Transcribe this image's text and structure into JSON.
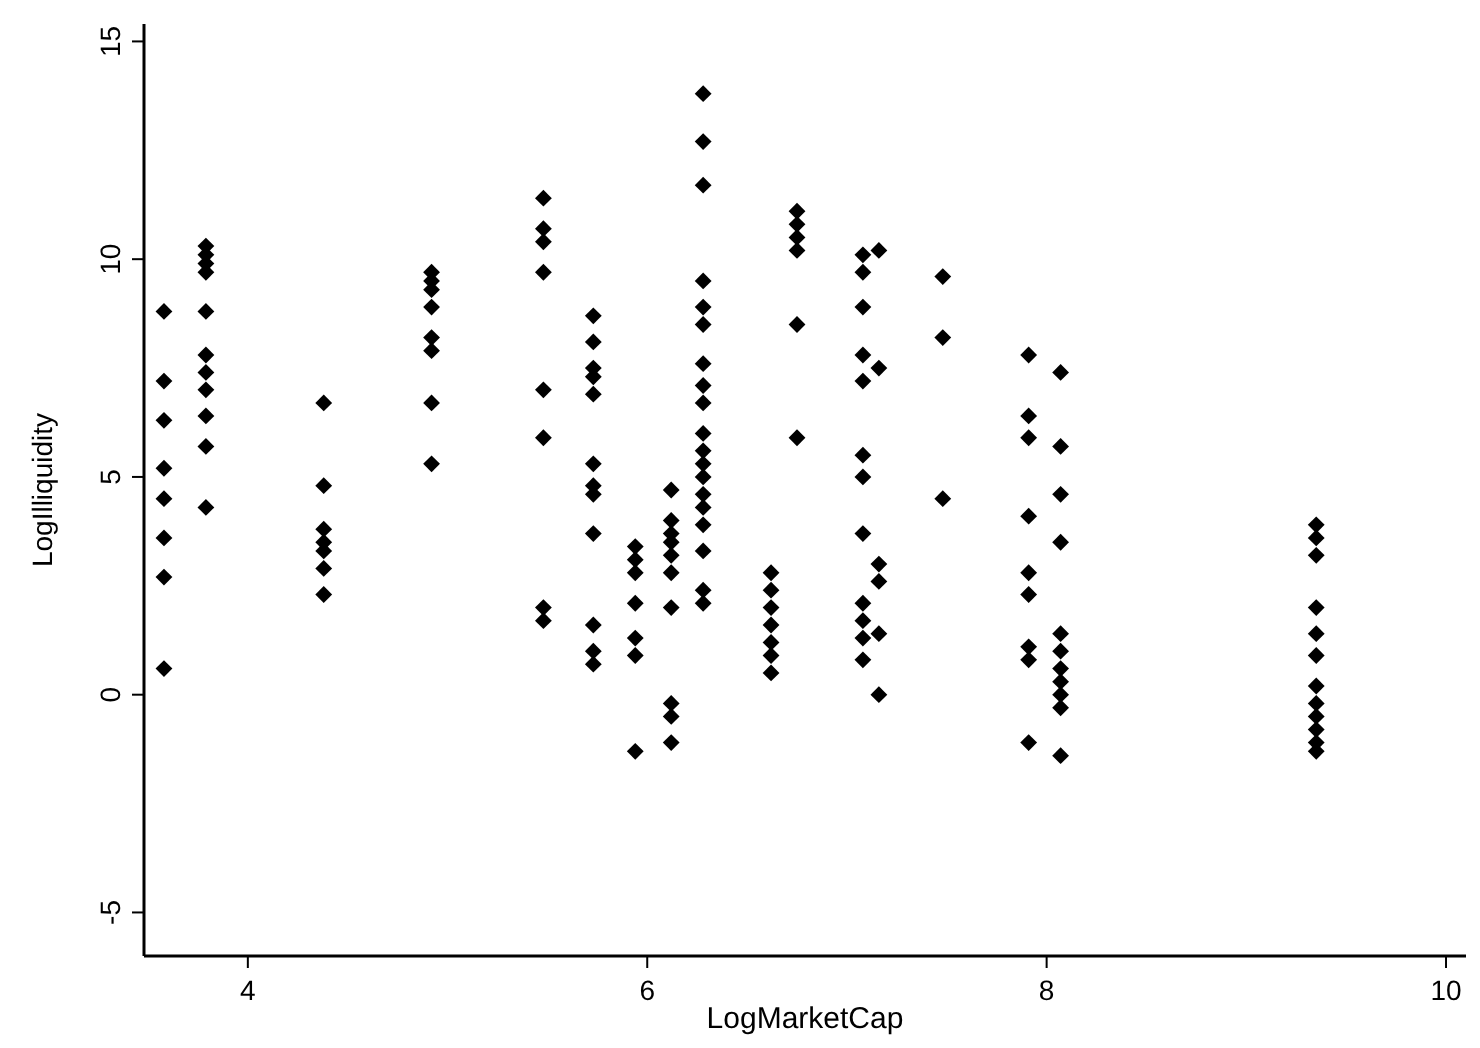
{
  "chart_data": {
    "type": "scatter",
    "xlabel": "LogMarketCap",
    "ylabel": "LogIlliquidity",
    "marker": "diamond",
    "grid": false,
    "xlim": [
      3.48,
      10.1
    ],
    "ylim": [
      -6,
      15.4
    ],
    "xticks": [
      4,
      6,
      8,
      10
    ],
    "yticks": [
      -5,
      0,
      5,
      10,
      15
    ],
    "series": [
      {
        "color": "#000000",
        "x": [
          3.58,
          3.58,
          3.58,
          3.58,
          3.58,
          3.58,
          3.58,
          3.58,
          3.79,
          3.79,
          3.79,
          3.79,
          3.79,
          3.79,
          3.79,
          3.79,
          3.79,
          3.79,
          3.79,
          4.38,
          4.38,
          4.38,
          4.38,
          4.38,
          4.38,
          4.38,
          4.92,
          4.92,
          4.92,
          4.92,
          4.92,
          4.92,
          4.92,
          4.92,
          5.48,
          5.48,
          5.48,
          5.48,
          5.48,
          5.48,
          5.48,
          5.48,
          5.73,
          5.73,
          5.73,
          5.73,
          5.73,
          5.73,
          5.73,
          5.73,
          5.73,
          5.73,
          5.73,
          5.73,
          5.94,
          5.94,
          5.94,
          5.94,
          5.94,
          5.94,
          5.94,
          6.12,
          6.12,
          6.12,
          6.12,
          6.12,
          6.12,
          6.12,
          6.12,
          6.12,
          6.12,
          6.28,
          6.28,
          6.28,
          6.28,
          6.28,
          6.28,
          6.28,
          6.28,
          6.28,
          6.28,
          6.28,
          6.28,
          6.28,
          6.28,
          6.28,
          6.28,
          6.28,
          6.28,
          6.28,
          6.62,
          6.62,
          6.62,
          6.62,
          6.62,
          6.62,
          6.62,
          6.75,
          6.75,
          6.75,
          6.75,
          6.75,
          6.75,
          7.08,
          7.08,
          7.08,
          7.08,
          7.08,
          7.08,
          7.08,
          7.08,
          7.08,
          7.08,
          7.08,
          7.08,
          7.16,
          7.16,
          7.16,
          7.16,
          7.16,
          7.16,
          7.48,
          7.48,
          7.48,
          7.91,
          7.91,
          7.91,
          7.91,
          7.91,
          7.91,
          7.91,
          7.91,
          7.91,
          8.07,
          8.07,
          8.07,
          8.07,
          8.07,
          8.07,
          8.07,
          8.07,
          8.07,
          8.07,
          8.07,
          9.35,
          9.35,
          9.35,
          9.35,
          9.35,
          9.35,
          9.35,
          9.35,
          9.35,
          9.35,
          9.35,
          9.35
        ],
        "values": [
          8.8,
          7.2,
          6.3,
          5.2,
          4.5,
          3.6,
          2.7,
          0.6,
          10.3,
          10.1,
          9.9,
          9.7,
          8.8,
          7.8,
          7.4,
          7.0,
          6.4,
          5.7,
          4.3,
          6.7,
          4.8,
          3.8,
          3.5,
          3.3,
          2.9,
          2.3,
          9.7,
          9.5,
          9.3,
          8.9,
          8.2,
          7.9,
          6.7,
          5.3,
          11.4,
          10.7,
          10.4,
          9.7,
          7.0,
          5.9,
          2.0,
          1.7,
          8.7,
          8.1,
          7.5,
          7.3,
          6.9,
          5.3,
          4.8,
          4.6,
          3.7,
          1.6,
          1.0,
          0.7,
          3.4,
          3.1,
          2.8,
          2.1,
          1.3,
          0.9,
          -1.3,
          4.7,
          4.0,
          3.7,
          3.5,
          3.2,
          2.8,
          2.0,
          -0.2,
          -0.5,
          -1.1,
          13.8,
          12.7,
          11.7,
          9.5,
          8.9,
          8.5,
          7.6,
          7.1,
          6.7,
          6.0,
          5.6,
          5.3,
          5.0,
          4.6,
          4.3,
          3.9,
          3.3,
          2.4,
          2.1,
          2.8,
          2.4,
          2.0,
          1.6,
          1.2,
          0.9,
          0.5,
          11.1,
          10.8,
          10.5,
          10.2,
          8.5,
          5.9,
          10.1,
          9.7,
          8.9,
          7.8,
          7.2,
          5.5,
          5.0,
          3.7,
          2.1,
          1.7,
          1.3,
          0.8,
          10.2,
          7.5,
          3.0,
          2.6,
          1.4,
          0.0,
          9.6,
          8.2,
          4.5,
          7.8,
          6.4,
          5.9,
          4.1,
          2.8,
          2.3,
          1.1,
          0.8,
          -1.1,
          7.4,
          5.7,
          4.6,
          3.5,
          1.4,
          1.0,
          0.6,
          0.3,
          0.0,
          -0.3,
          -1.4,
          3.9,
          3.6,
          3.2,
          2.0,
          1.4,
          0.9,
          0.2,
          -0.2,
          -0.5,
          -0.8,
          -1.1,
          -1.3
        ]
      }
    ]
  }
}
